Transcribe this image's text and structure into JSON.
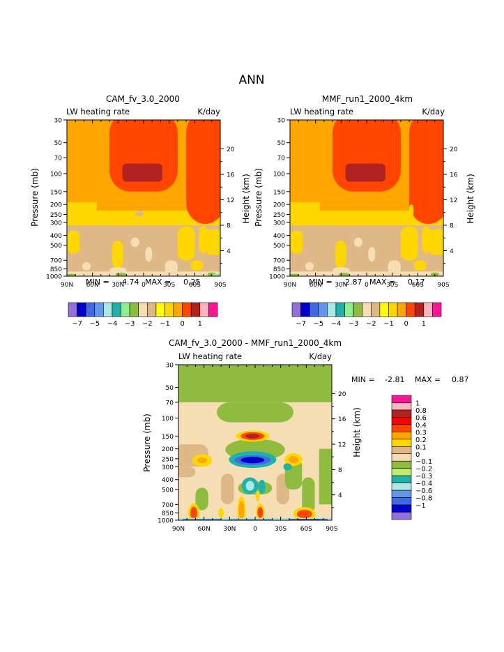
{
  "figure": {
    "title": "ANN"
  },
  "panels": [
    {
      "id": "cam",
      "title": "CAM_fv_3.0_2000",
      "left_label": "LW heating rate",
      "right_label": "K/day",
      "min_label": "MIN =",
      "min_value": "-4.74",
      "max_label": "MAX =",
      "max_value": "0.25",
      "ylabel": "Pressure (mb)",
      "ylabel2": "Height (km)"
    },
    {
      "id": "mmf",
      "title": "MMF_run1_2000_4km",
      "left_label": "LW heating rate",
      "right_label": "K/day",
      "min_label": "MIN =",
      "min_value": "-2.87",
      "max_label": "MAX =",
      "max_value": "0.17",
      "ylabel": "Pressure (mb)",
      "ylabel2": "Height (km)"
    },
    {
      "id": "diff",
      "title": "CAM_fv_3.0_2000 - MMF_run1_2000_4km",
      "left_label": "LW heating rate",
      "right_label": "K/day",
      "min_label": "MIN =",
      "min_value": "-2.81",
      "max_label": "MAX =",
      "max_value": "0.87",
      "ylabel": "Pressure (mb)",
      "ylabel2": "Height (km)"
    }
  ],
  "chart_data": {
    "type": "heatmap",
    "x_ticks": [
      "90N",
      "60N",
      "30N",
      "0",
      "30S",
      "60S",
      "90S"
    ],
    "x_values": [
      90,
      60,
      30,
      0,
      -30,
      -60,
      -90
    ],
    "y_ticks": [
      "30",
      "50",
      "70",
      "100",
      "150",
      "200",
      "250",
      "300",
      "400",
      "500",
      "700",
      "850",
      "1000"
    ],
    "y_values": [
      30,
      50,
      70,
      100,
      150,
      200,
      250,
      300,
      400,
      500,
      700,
      850,
      1000
    ],
    "ylim": [
      1000,
      30
    ],
    "y_scale": "log",
    "height_ticks": [
      "20",
      "16",
      "12",
      "8",
      "4"
    ],
    "height_values": [
      20,
      16,
      12,
      8,
      4
    ],
    "main_colorbar": {
      "colors": [
        "#9370db",
        "#0000cd",
        "#4169e1",
        "#6495ed",
        "#aee8e6",
        "#20b2aa",
        "#90ee90",
        "#8fbc3f",
        "#f5deb3",
        "#deb887",
        "#ffff00",
        "#ffd700",
        "#ffa500",
        "#ff4500",
        "#b22222",
        "#ffb6c1",
        "#ff1493"
      ],
      "labels": [
        "-7",
        "-5",
        "-4",
        "-3",
        "-2",
        "-1",
        "0",
        "1"
      ],
      "label_index": [
        1,
        3,
        5,
        7,
        9,
        11,
        13,
        15
      ]
    },
    "diff_colorbar": {
      "colors": [
        "#ff1493",
        "#ffb6c1",
        "#b22222",
        "#ff0000",
        "#ff4500",
        "#ffa500",
        "#ffd700",
        "#deb887",
        "#f5deb3",
        "#8fbc3f",
        "#c0ee66",
        "#20b2aa",
        "#aee8e6",
        "#6495ed",
        "#4169e1",
        "#0000cd",
        "#9370db"
      ],
      "labels": [
        "1",
        "0.8",
        "0.6",
        "0.4",
        "0.3",
        "0.2",
        "0.1",
        "0",
        "-0.1",
        "-0.2",
        "-0.3",
        "-0.4",
        "-0.6",
        "-0.8",
        "-1"
      ]
    },
    "colors": {
      "wheat": "#f5deb3",
      "tan": "#deb887",
      "yellow": "#ffd700",
      "orange": "#ffa500",
      "redorange": "#ff4500",
      "firebrick": "#b22222",
      "green": "#8fbc3f",
      "lightgreen": "#90ee90",
      "blue": "#0000cd",
      "royal": "#4169e1",
      "teal": "#20b2aa"
    }
  }
}
